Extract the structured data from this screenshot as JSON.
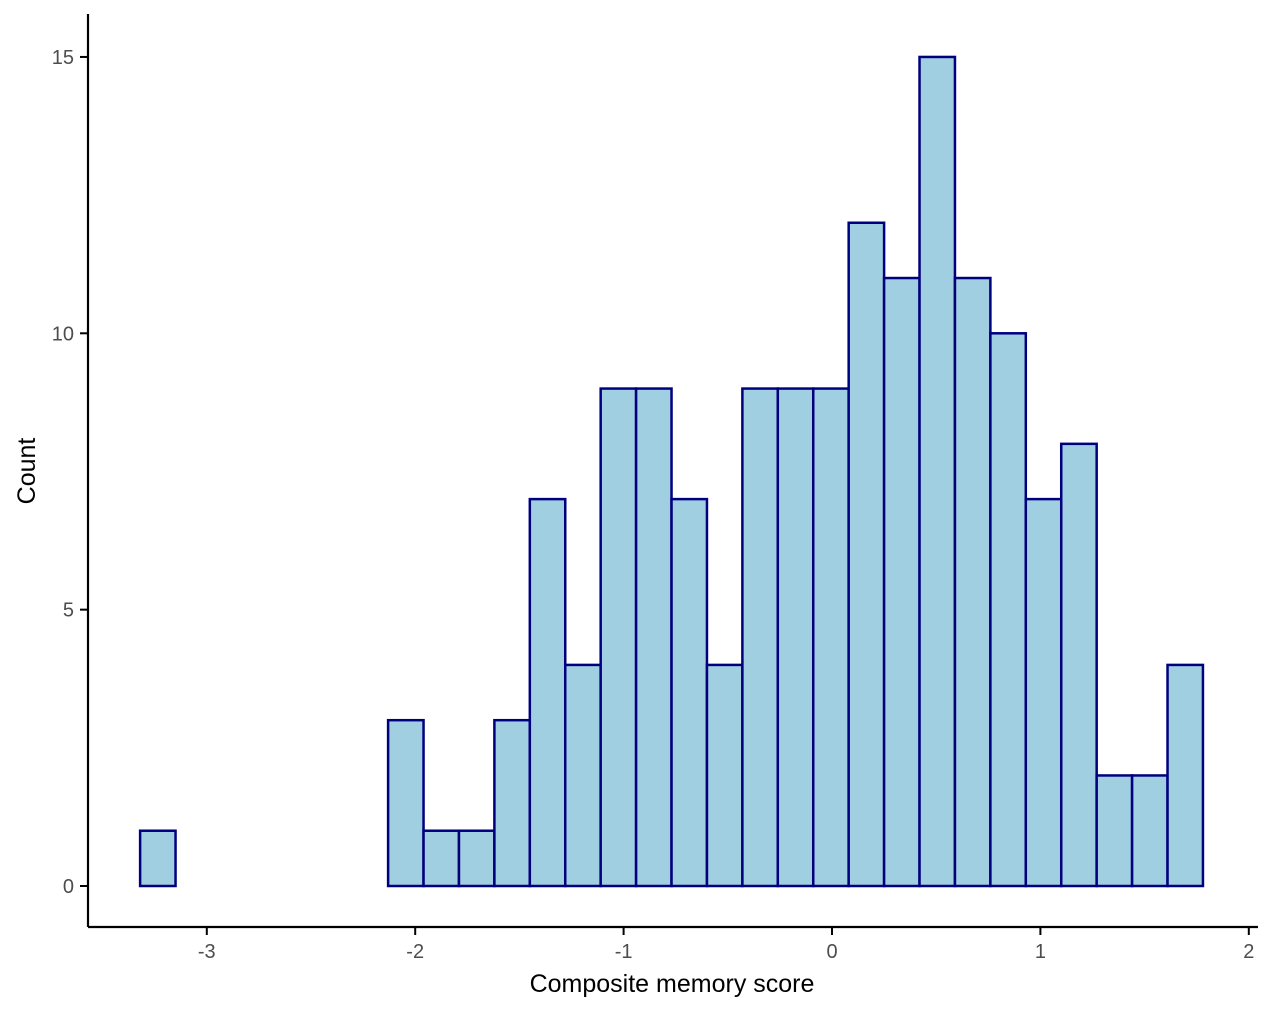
{
  "chart_data": {
    "type": "bar",
    "subtype": "histogram",
    "xlabel": "Composite memory score",
    "ylabel": "Count",
    "xlim": [
      -3.5,
      2.0
    ],
    "ylim": [
      0,
      15
    ],
    "grid": false,
    "legend": "none",
    "x_ticks": [
      -3,
      -2,
      -1,
      0,
      1,
      2
    ],
    "x_tick_labels": [
      "-3",
      "-2",
      "-1",
      "0",
      "1",
      "2"
    ],
    "y_ticks": [
      0,
      5,
      10,
      15
    ],
    "y_tick_labels": [
      "0",
      "5",
      "10",
      "15"
    ],
    "bin_width": 0.17,
    "bins": [
      {
        "start": -3.32,
        "end": -3.15,
        "count": 1
      },
      {
        "start": -3.15,
        "end": -2.98,
        "count": 0
      },
      {
        "start": -2.98,
        "end": -2.81,
        "count": 0
      },
      {
        "start": -2.81,
        "end": -2.64,
        "count": 0
      },
      {
        "start": -2.64,
        "end": -2.47,
        "count": 0
      },
      {
        "start": -2.47,
        "end": -2.3,
        "count": 0
      },
      {
        "start": -2.3,
        "end": -2.13,
        "count": 0
      },
      {
        "start": -2.13,
        "end": -1.96,
        "count": 3
      },
      {
        "start": -1.96,
        "end": -1.79,
        "count": 1
      },
      {
        "start": -1.79,
        "end": -1.62,
        "count": 1
      },
      {
        "start": -1.62,
        "end": -1.45,
        "count": 3
      },
      {
        "start": -1.45,
        "end": -1.28,
        "count": 7
      },
      {
        "start": -1.28,
        "end": -1.11,
        "count": 4
      },
      {
        "start": -1.11,
        "end": -0.94,
        "count": 9
      },
      {
        "start": -0.94,
        "end": -0.77,
        "count": 9
      },
      {
        "start": -0.77,
        "end": -0.6,
        "count": 7
      },
      {
        "start": -0.6,
        "end": -0.43,
        "count": 4
      },
      {
        "start": -0.43,
        "end": -0.26,
        "count": 9
      },
      {
        "start": -0.26,
        "end": -0.09,
        "count": 9
      },
      {
        "start": -0.09,
        "end": 0.08,
        "count": 9
      },
      {
        "start": 0.08,
        "end": 0.25,
        "count": 12
      },
      {
        "start": 0.25,
        "end": 0.42,
        "count": 11
      },
      {
        "start": 0.42,
        "end": 0.59,
        "count": 15
      },
      {
        "start": 0.59,
        "end": 0.76,
        "count": 11
      },
      {
        "start": 0.76,
        "end": 0.93,
        "count": 10
      },
      {
        "start": 0.93,
        "end": 1.1,
        "count": 7
      },
      {
        "start": 1.1,
        "end": 1.27,
        "count": 8
      },
      {
        "start": 1.27,
        "end": 1.44,
        "count": 2
      },
      {
        "start": 1.44,
        "end": 1.61,
        "count": 2
      },
      {
        "start": 1.61,
        "end": 1.78,
        "count": 4
      }
    ],
    "colors": {
      "bar_fill": "#a0cfe2",
      "bar_stroke": "#00007f",
      "axis": "#000000",
      "tick_text": "#4d4d4d"
    }
  }
}
